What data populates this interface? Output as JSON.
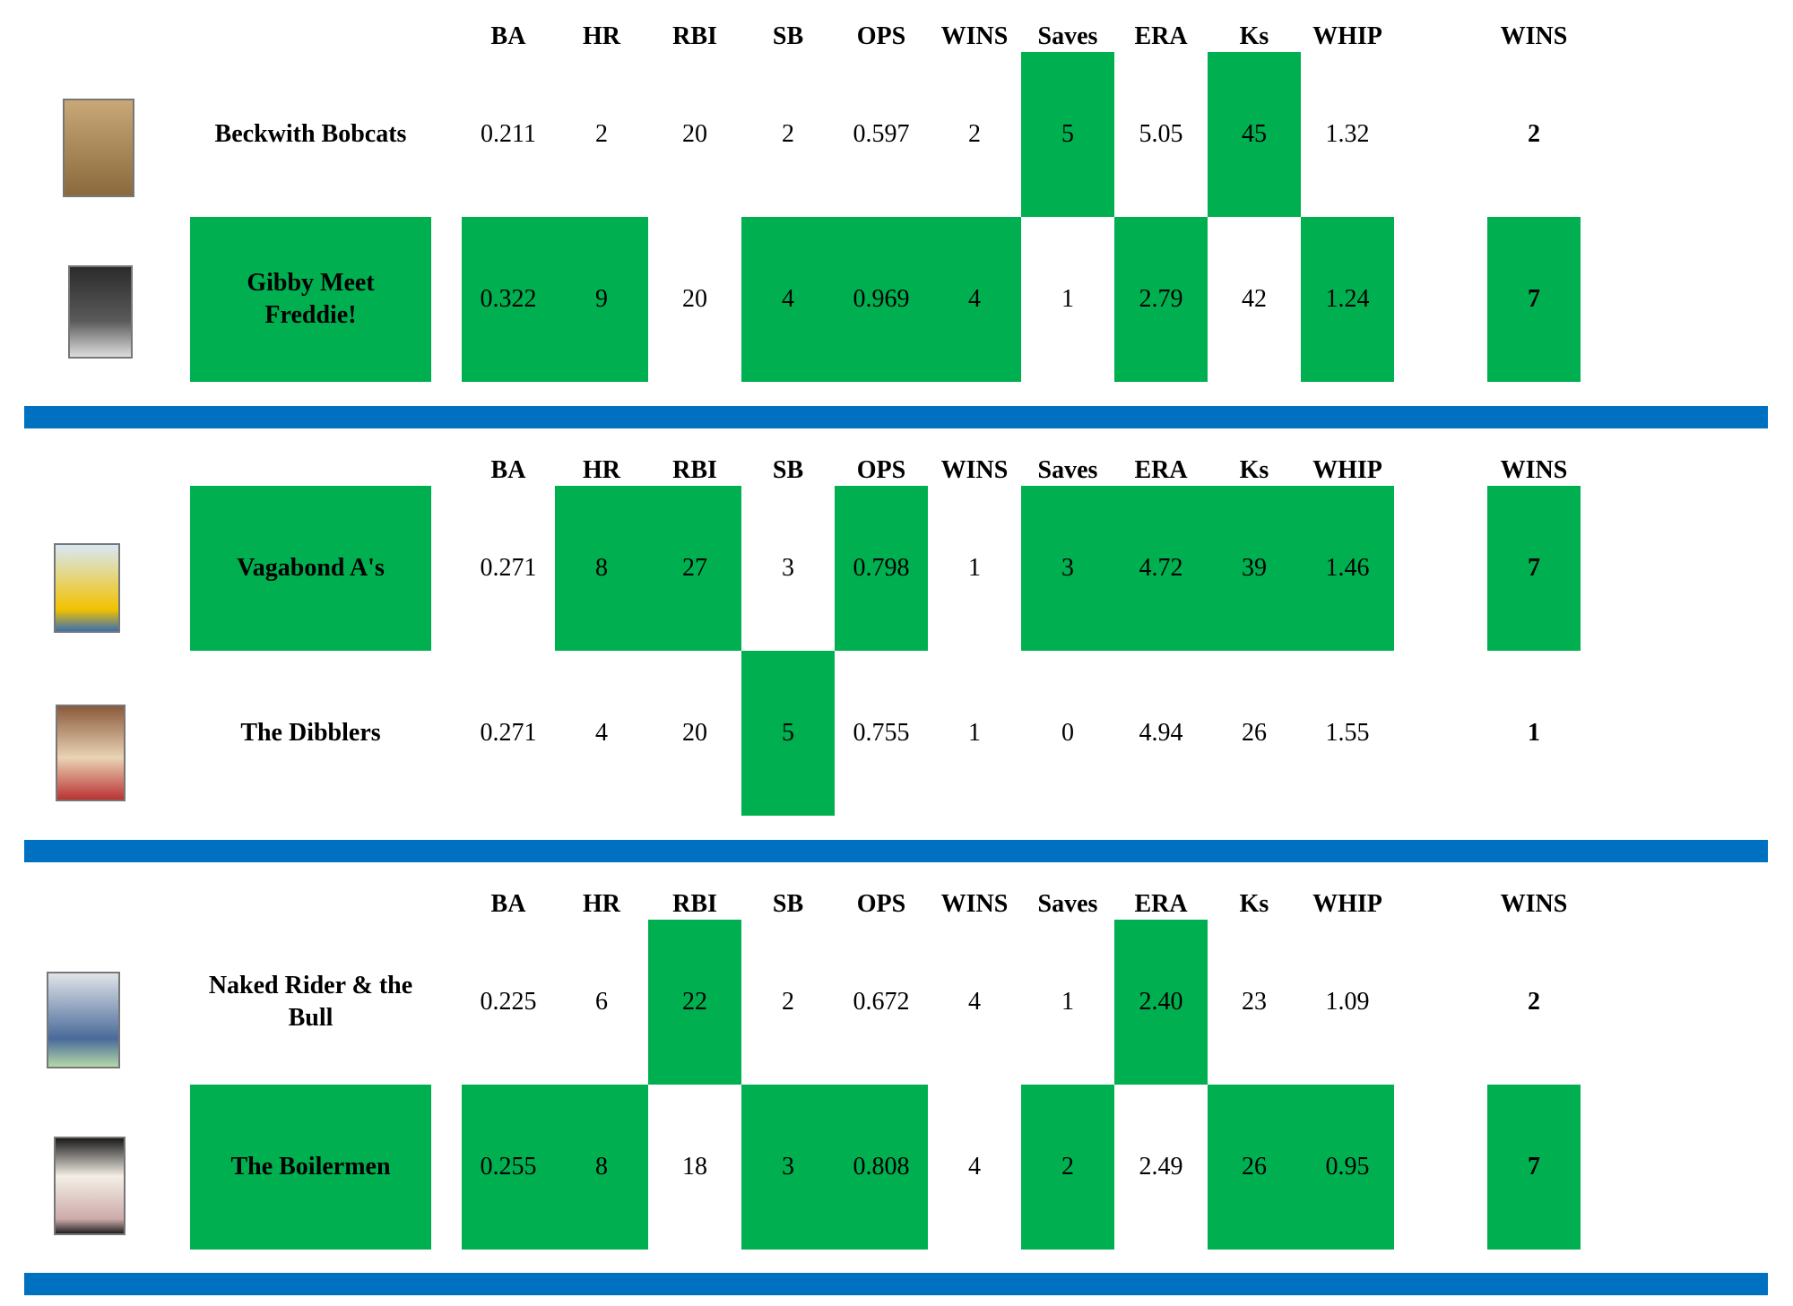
{
  "columns": [
    "BA",
    "HR",
    "RBI",
    "SB",
    "OPS",
    "WINS",
    "Saves",
    "ERA",
    "Ks",
    "WHIP"
  ],
  "wins_header": "WINS",
  "colors": {
    "win": "#00b050",
    "divider": "#0070c0"
  },
  "matchups": [
    {
      "teams": [
        {
          "name": "Beckwith Bobcats",
          "name_win": false,
          "card_icon": "baseball-card-pitcher-icon",
          "stats": [
            "0.211",
            "2",
            "20",
            "2",
            "0.597",
            "2",
            "5",
            "5.05",
            "45",
            "1.32"
          ],
          "wins_flags": [
            false,
            false,
            false,
            false,
            false,
            false,
            true,
            false,
            true,
            false
          ],
          "total_wins": "2",
          "total_win": false
        },
        {
          "name": "Gibby Meet Freddie!",
          "name_win": true,
          "card_icon": "baseball-card-batter-icon",
          "stats": [
            "0.322",
            "9",
            "20",
            "4",
            "0.969",
            "4",
            "1",
            "2.79",
            "42",
            "1.24"
          ],
          "wins_flags": [
            true,
            true,
            false,
            true,
            true,
            true,
            false,
            true,
            false,
            true
          ],
          "total_wins": "7",
          "total_win": true
        }
      ]
    },
    {
      "teams": [
        {
          "name": "Vagabond A's",
          "name_win": true,
          "card_icon": "baseball-card-athletics-icon",
          "stats": [
            "0.271",
            "8",
            "27",
            "3",
            "0.798",
            "1",
            "3",
            "4.72",
            "39",
            "1.46"
          ],
          "wins_flags": [
            false,
            true,
            true,
            false,
            true,
            false,
            true,
            true,
            true,
            true
          ],
          "total_wins": "7",
          "total_win": true
        },
        {
          "name": "The Dibblers",
          "name_win": false,
          "card_icon": "baseball-card-portrait-icon",
          "stats": [
            "0.271",
            "4",
            "20",
            "5",
            "0.755",
            "1",
            "0",
            "4.94",
            "26",
            "1.55"
          ],
          "wins_flags": [
            false,
            false,
            false,
            true,
            false,
            false,
            false,
            false,
            false,
            false
          ],
          "total_wins": "1",
          "total_win": false
        }
      ]
    },
    {
      "teams": [
        {
          "name": "Naked Rider & the Bull",
          "name_win": false,
          "card_icon": "baseball-card-runner-icon",
          "stats": [
            "0.225",
            "6",
            "22",
            "2",
            "0.672",
            "4",
            "1",
            "2.40",
            "23",
            "1.09"
          ],
          "wins_flags": [
            false,
            false,
            true,
            false,
            false,
            false,
            false,
            true,
            false,
            false
          ],
          "total_wins": "2",
          "total_win": false
        },
        {
          "name": "The Boilermen",
          "name_win": true,
          "card_icon": "baseball-card-framed-icon",
          "stats": [
            "0.255",
            "8",
            "18",
            "3",
            "0.808",
            "4",
            "2",
            "2.49",
            "26",
            "0.95"
          ],
          "wins_flags": [
            true,
            true,
            false,
            true,
            true,
            false,
            true,
            false,
            true,
            true
          ],
          "total_wins": "7",
          "total_win": true
        }
      ]
    }
  ]
}
